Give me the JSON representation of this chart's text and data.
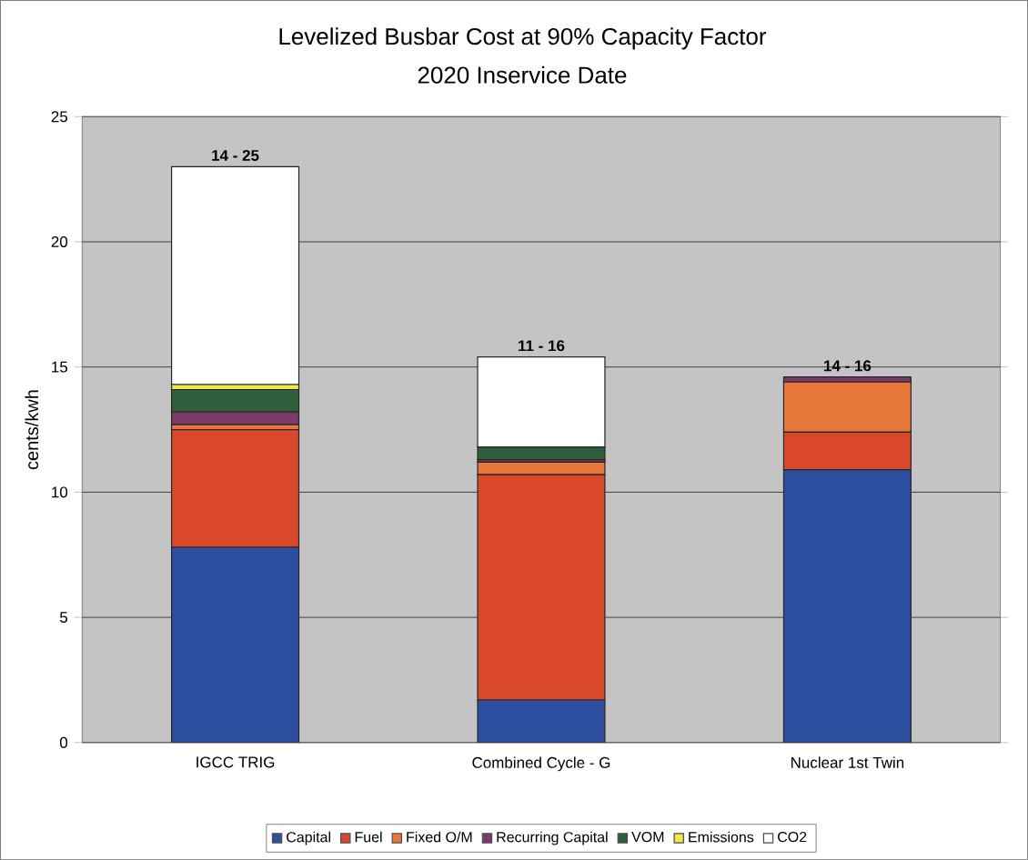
{
  "chart_data": {
    "type": "bar",
    "stacked": true,
    "title": "Levelized Busbar Cost at 90% Capacity Factor",
    "subtitle": "2020 Inservice Date",
    "ylabel": "cents/kwh",
    "categories": [
      "IGCC TRIG",
      "Combined Cycle - G",
      "Nuclear 1st Twin"
    ],
    "series": [
      {
        "name": "Capital",
        "color": "#2e4fa0",
        "values": [
          7.8,
          1.7,
          10.9
        ]
      },
      {
        "name": "Fuel",
        "color": "#d9482a",
        "values": [
          4.7,
          9.0,
          1.5
        ]
      },
      {
        "name": "Fixed O/M",
        "color": "#e8773a",
        "values": [
          0.2,
          0.5,
          2.0
        ]
      },
      {
        "name": "Recurring Capital",
        "color": "#7a3a6a",
        "values": [
          0.5,
          0.1,
          0.2
        ]
      },
      {
        "name": "VOM",
        "color": "#2f5e3c",
        "values": [
          0.9,
          0.5,
          0
        ]
      },
      {
        "name": "Emissions",
        "color": "#f2e64a",
        "values": [
          0.2,
          0,
          0
        ]
      },
      {
        "name": "CO2",
        "color": "#ffffff",
        "values": [
          8.7,
          3.6,
          0
        ]
      }
    ],
    "totals": [
      "14 - 25",
      "11 - 16",
      "14 - 16"
    ],
    "ylim": [
      0,
      25
    ],
    "yticks": [
      0,
      5,
      10,
      15,
      20,
      25
    ],
    "grid": "y",
    "legend": "bottom"
  }
}
